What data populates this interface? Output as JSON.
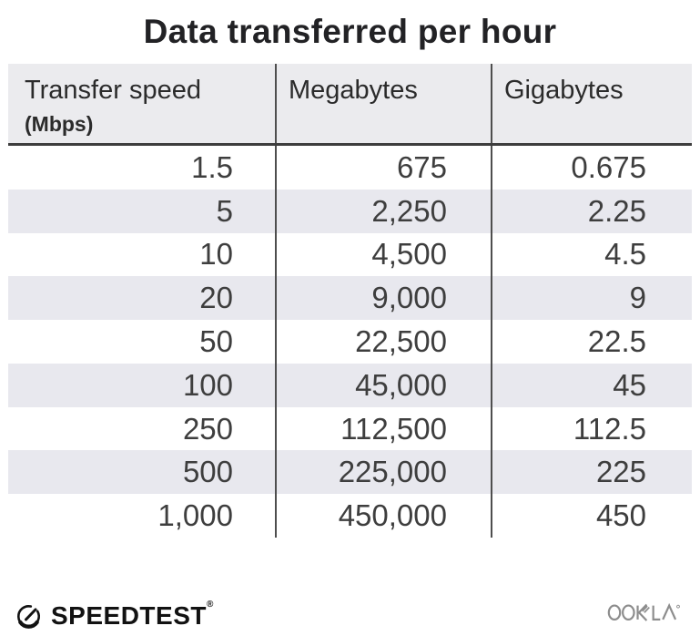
{
  "title": "Data transferred per hour",
  "table": {
    "columns": [
      {
        "label": "Transfer speed",
        "sublabel": "(Mbps)"
      },
      {
        "label": "Megabytes"
      },
      {
        "label": "Gigabytes"
      }
    ],
    "rows": [
      [
        "1.5",
        "675",
        "0.675"
      ],
      [
        "5",
        "2,250",
        "2.25"
      ],
      [
        "10",
        "4,500",
        "4.5"
      ],
      [
        "20",
        "9,000",
        "9"
      ],
      [
        "50",
        "22,500",
        "22.5"
      ],
      [
        "100",
        "45,000",
        "45"
      ],
      [
        "250",
        "112,500",
        "112.5"
      ],
      [
        "500",
        "225,000",
        "225"
      ],
      [
        "1,000",
        "450,000",
        "450"
      ]
    ]
  },
  "footer": {
    "speedtest_label": "SPEEDTEST",
    "speedtest_trademark": "®",
    "speedtest_icon": "speedtest-gauge-icon",
    "ookla_label": "OOKLA",
    "ookla_icon": "ookla-wordmark"
  },
  "colors": {
    "header_bg": "#ebebee",
    "stripe_bg": "#e8e8ee",
    "divider": "#4e4e4e",
    "header_border": "#3d3d3d",
    "body_text": "#3e3e3e",
    "title_text": "#222225",
    "speedtest_black": "#121212",
    "ookla_gray": "#8d8d8d"
  },
  "chart_data": {
    "type": "table",
    "title": "Data transferred per hour",
    "columns": [
      "Transfer speed (Mbps)",
      "Megabytes",
      "Gigabytes"
    ],
    "rows": [
      [
        1.5,
        675,
        0.675
      ],
      [
        5,
        2250,
        2.25
      ],
      [
        10,
        4500,
        4.5
      ],
      [
        20,
        9000,
        9
      ],
      [
        50,
        22500,
        22.5
      ],
      [
        100,
        45000,
        45
      ],
      [
        250,
        112500,
        112.5
      ],
      [
        500,
        225000,
        225
      ],
      [
        1000,
        450000,
        450
      ]
    ]
  }
}
